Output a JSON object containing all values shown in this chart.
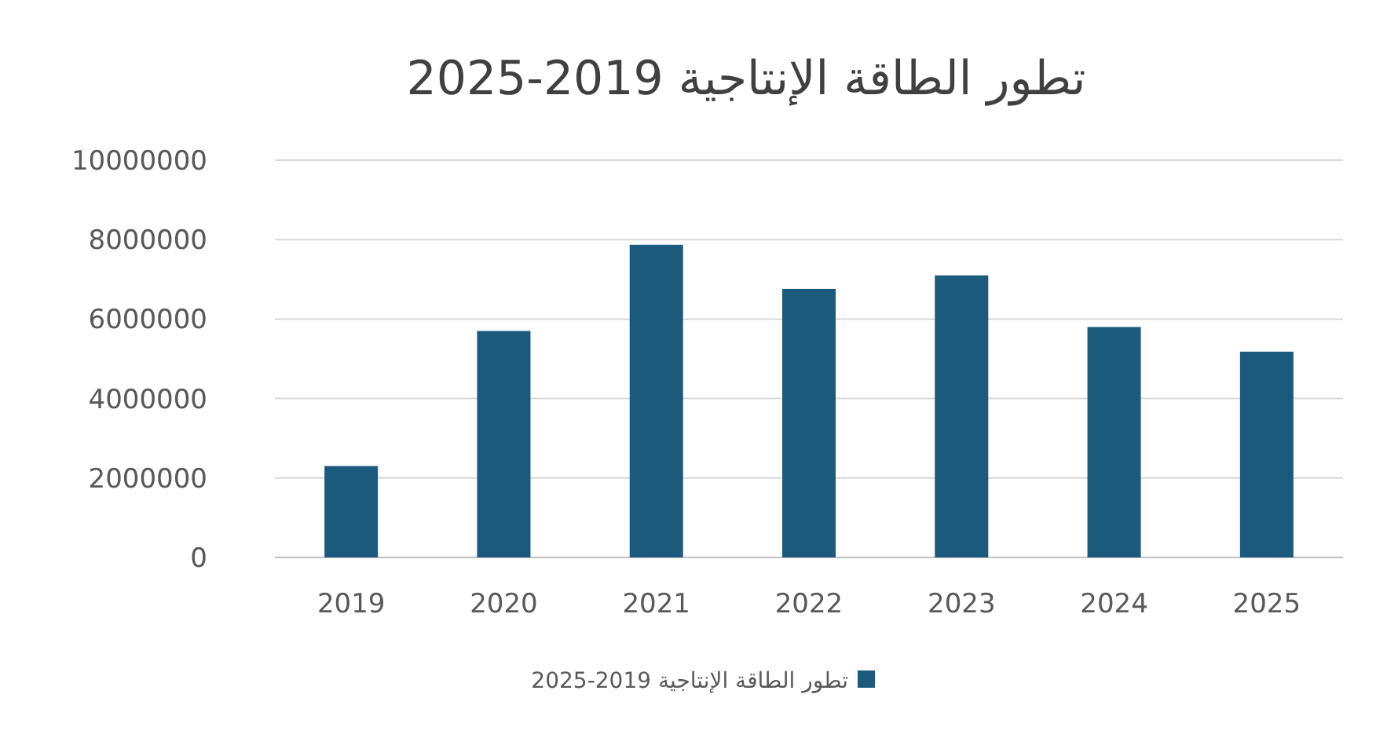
{
  "chart_data": {
    "type": "bar",
    "title": "تطور الطاقة الإنتاجية 2019-2025",
    "categories": [
      "2019",
      "2020",
      "2021",
      "2022",
      "2023",
      "2024",
      "2025"
    ],
    "series": [
      {
        "name": "تطور الطاقة الإنتاجية 2019-2025",
        "color": "#1c5a7d",
        "values": [
          2300000,
          5700000,
          7870000,
          6760000,
          7100000,
          5800000,
          5180000
        ]
      }
    ],
    "ylim": [
      0,
      10000000
    ],
    "yticks": [
      0,
      2000000,
      4000000,
      6000000,
      8000000,
      10000000
    ],
    "grid": "y",
    "legend": "bottom"
  }
}
